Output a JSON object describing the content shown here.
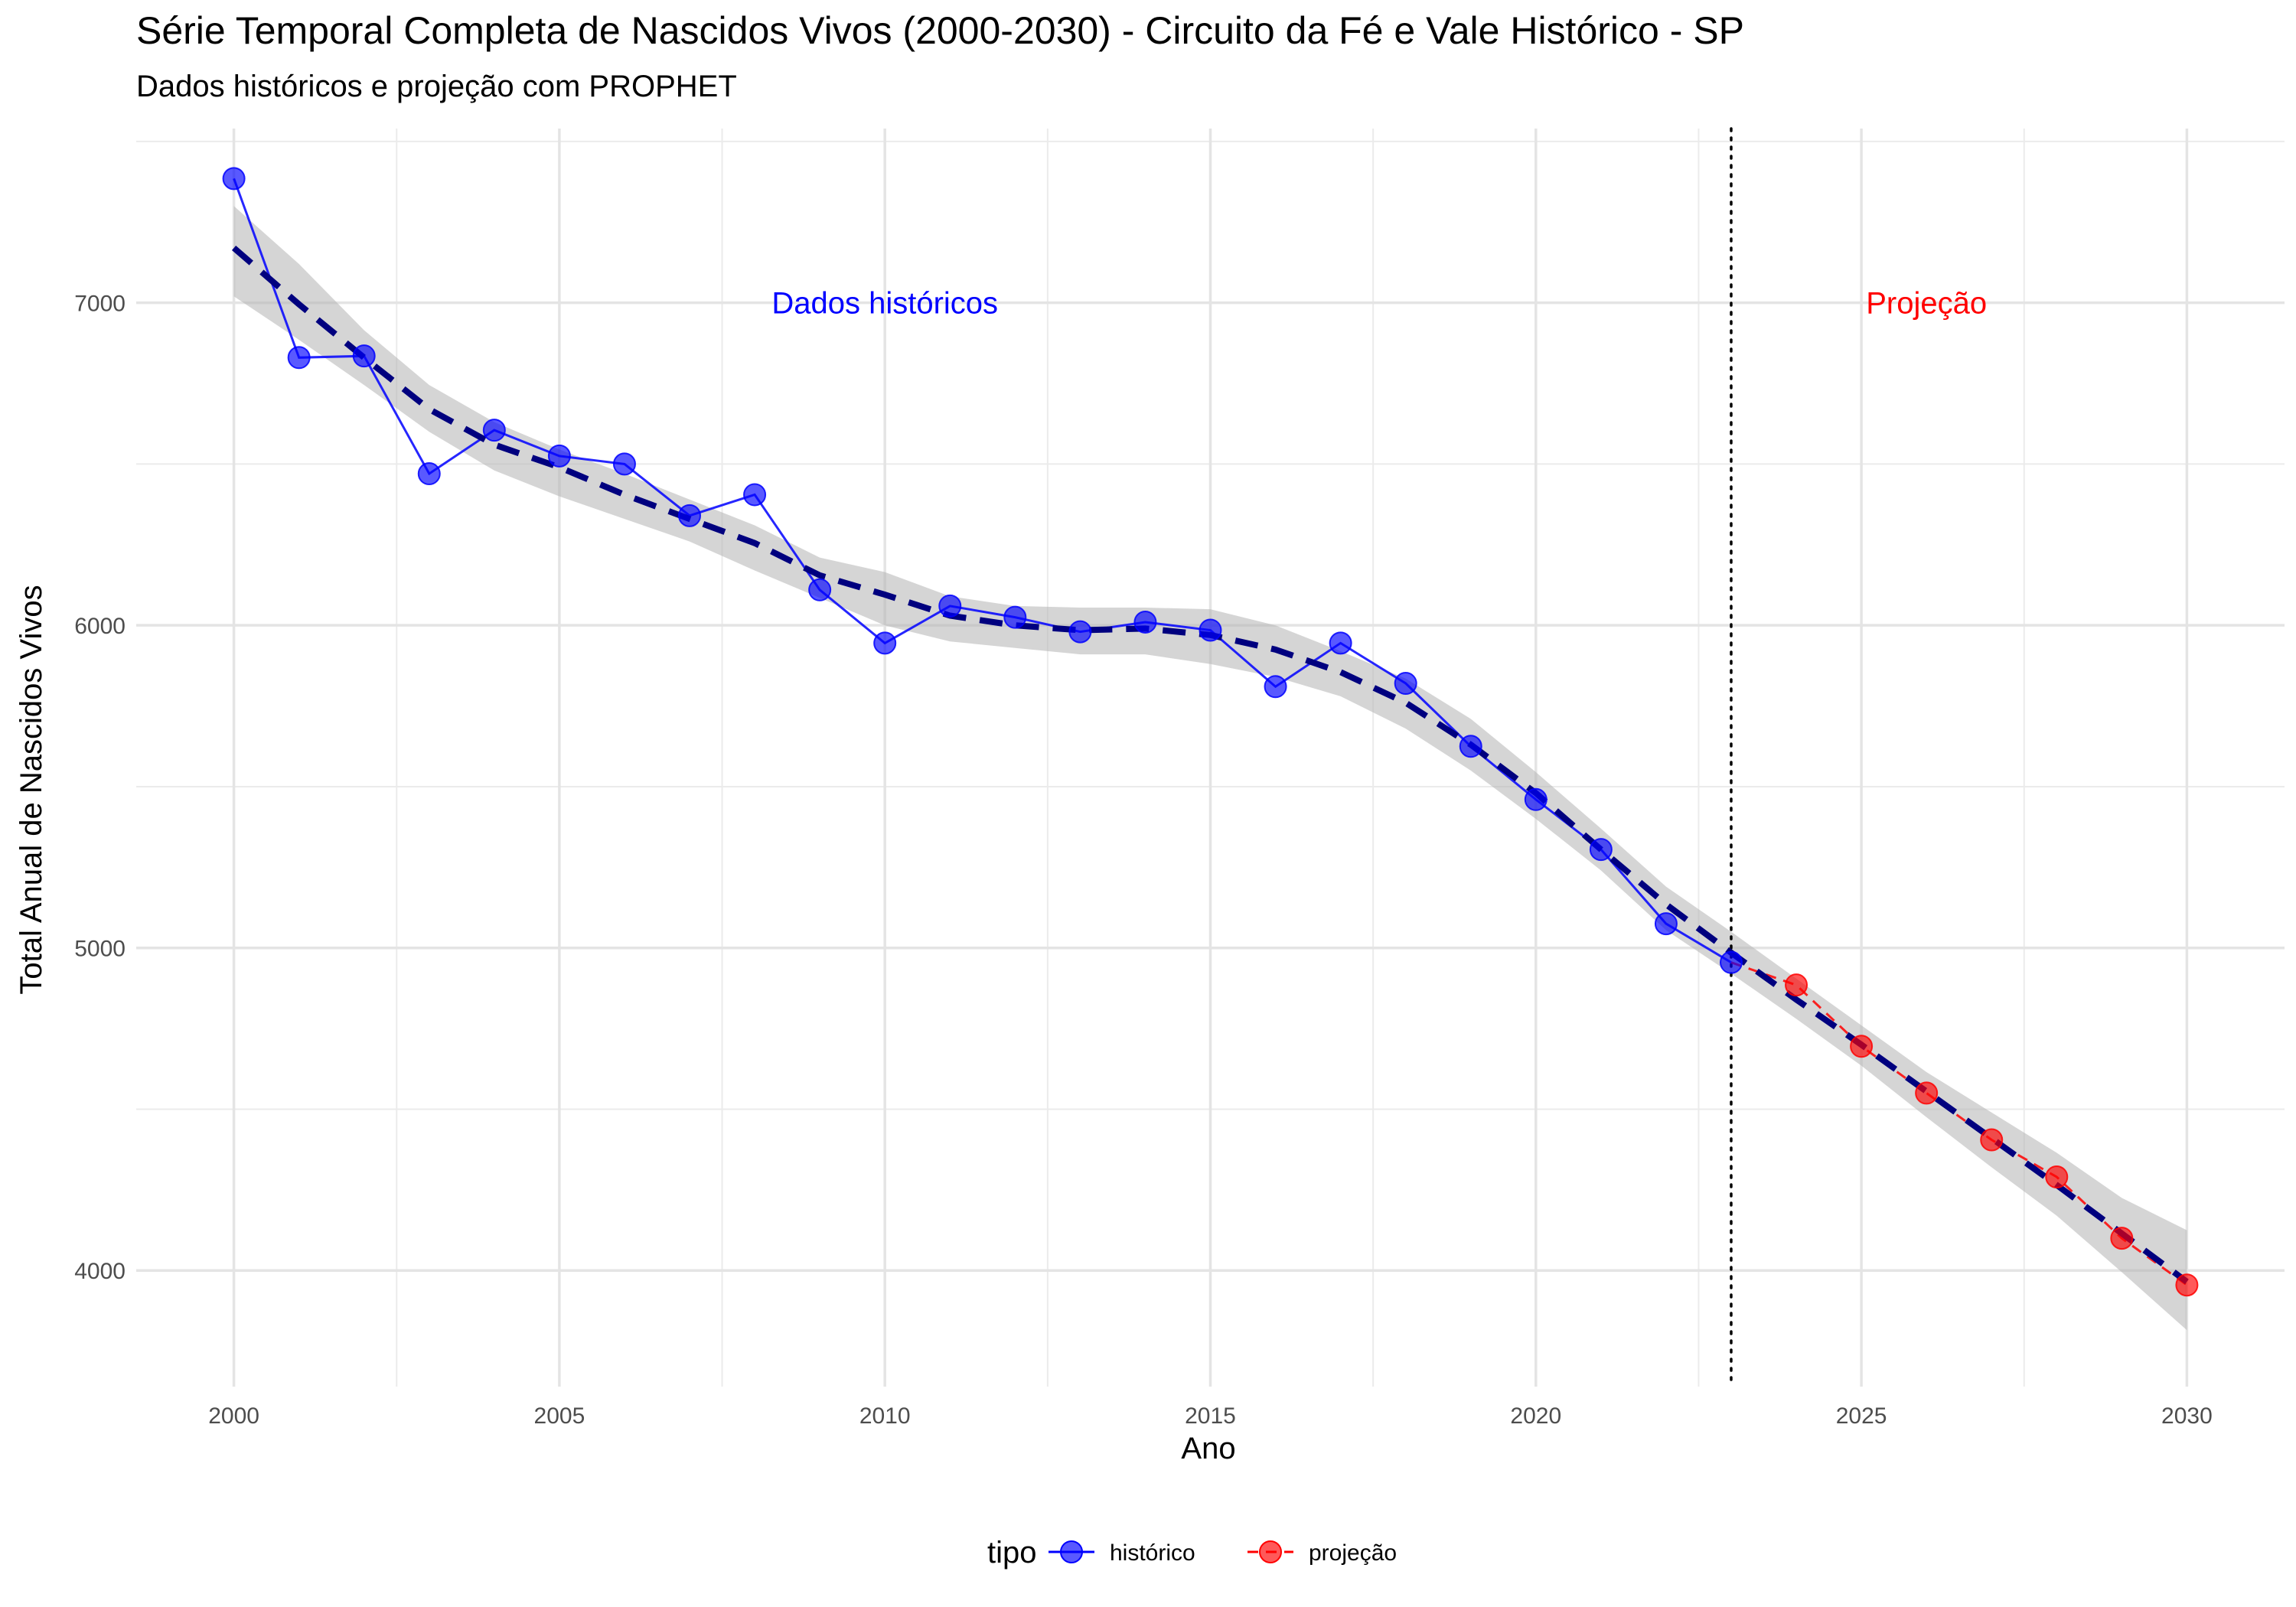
{
  "chart_data": {
    "type": "line",
    "title": "Série Temporal Completa de Nascidos Vivos (2000-2030) -  Circuito da Fé e Vale Histórico - SP",
    "subtitle": "Dados históricos e projeção com PROPHET",
    "xlabel": "Ano",
    "ylabel": "Total Anual de Nascidos Vivos",
    "xlim": [
      1998.5,
      2031.5
    ],
    "ylim": [
      3640,
      7540
    ],
    "x_ticks": [
      2000,
      2005,
      2010,
      2015,
      2020,
      2025,
      2030
    ],
    "y_ticks": [
      4000,
      5000,
      6000,
      7000
    ],
    "grid": true,
    "legend": {
      "title": "tipo",
      "position": "bottom",
      "entries": [
        {
          "label": "histórico",
          "color": "#0000ff"
        },
        {
          "label": "projeção",
          "color": "#ff0000"
        }
      ]
    },
    "cutoff_year": 2023,
    "annotations": [
      {
        "text": "Dados históricos",
        "x": 2010,
        "y": 7000,
        "color": "#0000ff"
      },
      {
        "text": "Projeção",
        "x": 2026,
        "y": 7000,
        "color": "#ff0000"
      }
    ],
    "series": [
      {
        "name": "histórico",
        "color": "#0000ff",
        "x": [
          2000,
          2001,
          2002,
          2003,
          2004,
          2005,
          2006,
          2007,
          2008,
          2009,
          2010,
          2011,
          2012,
          2013,
          2014,
          2015,
          2016,
          2017,
          2018,
          2019,
          2020,
          2021,
          2022,
          2023
        ],
        "y": [
          7385,
          6830,
          6835,
          6470,
          6605,
          6525,
          6500,
          6340,
          6405,
          6110,
          5945,
          6060,
          6025,
          5980,
          6010,
          5985,
          5810,
          5945,
          5820,
          5625,
          5460,
          5305,
          5075,
          4955
        ]
      },
      {
        "name": "projeção",
        "color": "#ff0000",
        "x": [
          2023,
          2024,
          2025,
          2026,
          2027,
          2028,
          2029,
          2030
        ],
        "y": [
          4955,
          4885,
          4695,
          4550,
          4405,
          4290,
          4100,
          3955
        ]
      }
    ],
    "trend": {
      "color": "#00007f",
      "x": [
        2000,
        2001,
        2002,
        2003,
        2004,
        2005,
        2006,
        2007,
        2008,
        2009,
        2010,
        2011,
        2012,
        2013,
        2014,
        2015,
        2016,
        2017,
        2018,
        2019,
        2020,
        2021,
        2022,
        2023,
        2024,
        2025,
        2026,
        2027,
        2028,
        2029,
        2030
      ],
      "y": [
        7170,
        6995,
        6830,
        6670,
        6560,
        6490,
        6405,
        6330,
        6255,
        6155,
        6095,
        6030,
        6000,
        5985,
        5990,
        5970,
        5925,
        5855,
        5760,
        5630,
        5480,
        5305,
        5135,
        4985,
        4840,
        4700,
        4555,
        4410,
        4265,
        4115,
        3965
      ],
      "lower": [
        7020,
        6885,
        6745,
        6600,
        6480,
        6400,
        6330,
        6260,
        6170,
        6085,
        6000,
        5950,
        5930,
        5910,
        5910,
        5880,
        5840,
        5780,
        5680,
        5550,
        5400,
        5240,
        5055,
        4920,
        4780,
        4635,
        4475,
        4320,
        4170,
        3995,
        3815
      ],
      "upper": [
        7300,
        7120,
        6915,
        6745,
        6630,
        6545,
        6470,
        6390,
        6310,
        6210,
        6165,
        6090,
        6060,
        6055,
        6055,
        6050,
        6000,
        5920,
        5835,
        5710,
        5545,
        5370,
        5190,
        5050,
        4905,
        4760,
        4615,
        4490,
        4365,
        4225,
        4125
      ]
    }
  }
}
